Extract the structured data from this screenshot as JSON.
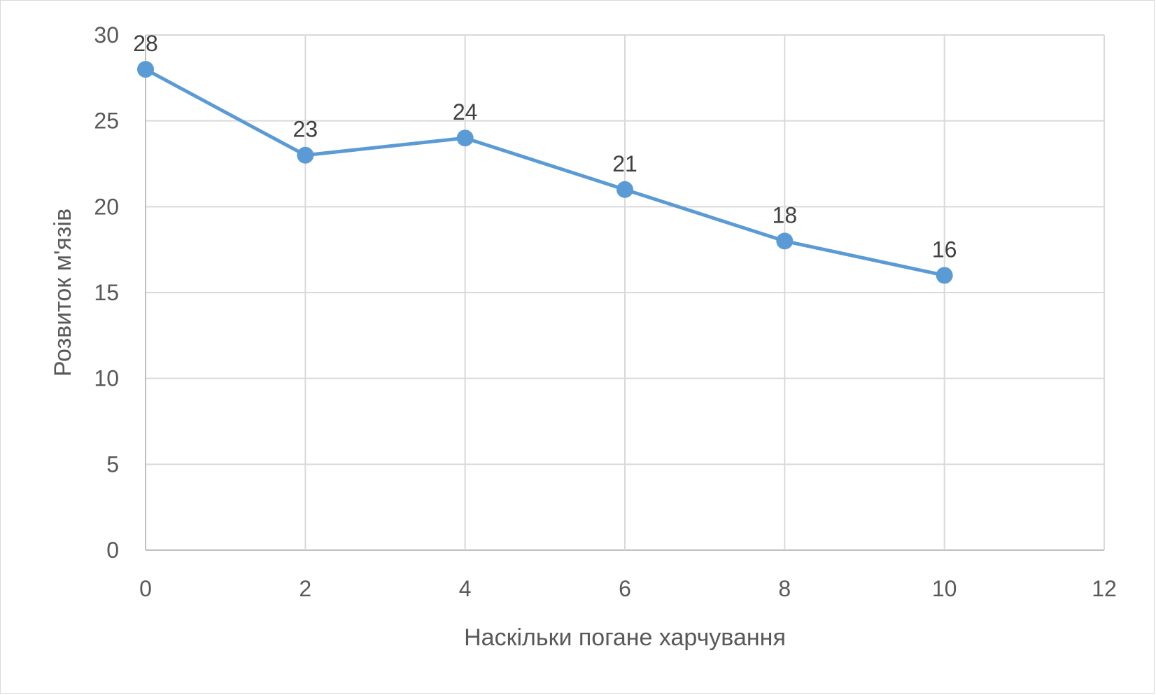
{
  "chart_data": {
    "type": "scatter",
    "title": "",
    "xlabel": "Наскільки погане харчування",
    "ylabel": "Розвиток м'язів",
    "xlim": [
      0,
      12
    ],
    "ylim": [
      0,
      30
    ],
    "x_ticks": [
      0,
      2,
      4,
      6,
      8,
      10,
      12
    ],
    "y_ticks": [
      0,
      5,
      10,
      15,
      20,
      25,
      30
    ],
    "x_tick_labels": [
      "0",
      "2",
      "4",
      "6",
      "8",
      "10",
      "12"
    ],
    "y_tick_labels": [
      "0",
      "5",
      "10",
      "15",
      "20",
      "25",
      "30"
    ],
    "grid": true,
    "legend": "none",
    "series": [
      {
        "x": [
          0,
          2,
          4,
          6,
          8,
          10
        ],
        "y": [
          28,
          23,
          24,
          21,
          18,
          16
        ],
        "data_labels": [
          "28",
          "23",
          "24",
          "21",
          "18",
          "16"
        ],
        "color": "#5b9bd5",
        "line": true,
        "markers": true
      }
    ]
  }
}
